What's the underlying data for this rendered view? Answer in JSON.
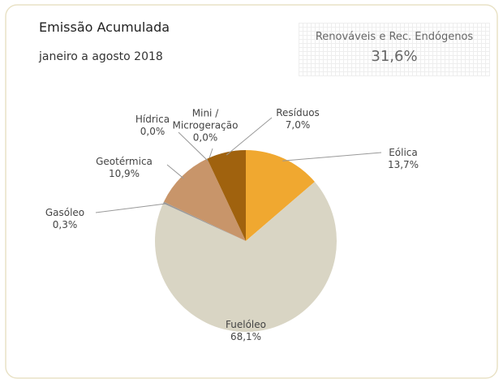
{
  "chart_data": {
    "type": "pie",
    "title": "Emissão Acumulada",
    "subtitle": "janeiro a agosto 2018",
    "annotation": {
      "text": "Renováveis e Rec. Endógenos",
      "value": 31.6,
      "value_label": "31,6%"
    },
    "categories": [
      "Eólica",
      "Fuelóleo",
      "Gasóleo",
      "Geotérmica",
      "Hídrica",
      "Mini /\nMicrogeração",
      "Resíduos"
    ],
    "values": [
      13.7,
      68.1,
      0.3,
      10.9,
      0.0,
      0.0,
      7.0
    ],
    "value_labels": [
      "13,7%",
      "68,1%",
      "0,3%",
      "10,9%",
      "0,0%",
      "0,0%",
      "7,0%"
    ],
    "colors": [
      "#f0a830",
      "#d9d5c4",
      "#9a9a9a",
      "#c8956a",
      "#7a7a7a",
      "#5a5a5a",
      "#a0620e"
    ]
  }
}
